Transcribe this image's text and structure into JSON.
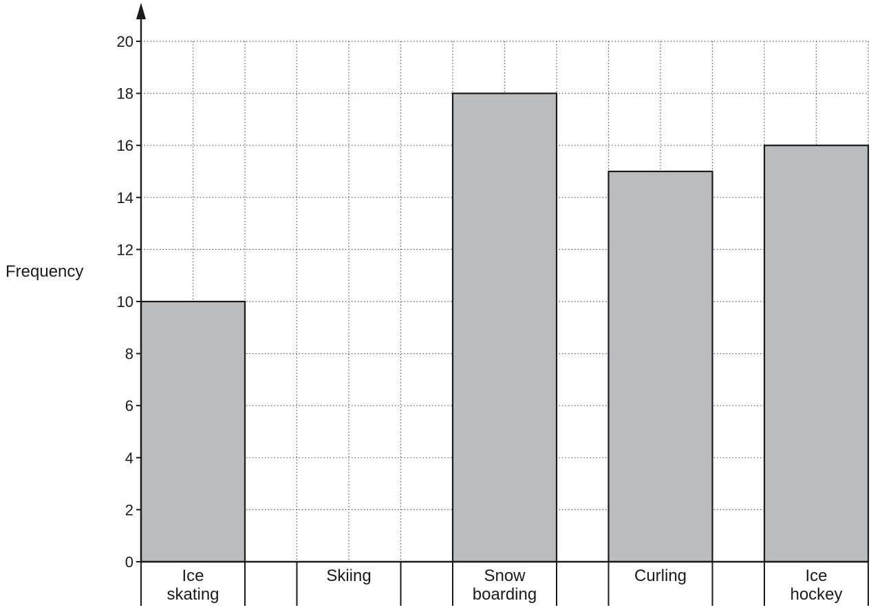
{
  "chart_data": {
    "type": "bar",
    "ylabel": "Frequency",
    "xlabel": "",
    "categories": [
      [
        "Ice",
        "skating"
      ],
      [
        "Skiing"
      ],
      [
        "Snow",
        "boarding"
      ],
      [
        "Curling"
      ],
      [
        "Ice",
        "hockey"
      ]
    ],
    "values": [
      10,
      0,
      18,
      15,
      16
    ],
    "ylim": [
      0,
      20
    ],
    "yticks": [
      0,
      2,
      4,
      6,
      8,
      10,
      12,
      14,
      16,
      18,
      20
    ],
    "grid": true,
    "bar_color": "#bbbcbf",
    "axis_color": "#1a1a1a",
    "grid_color": "#555555"
  }
}
